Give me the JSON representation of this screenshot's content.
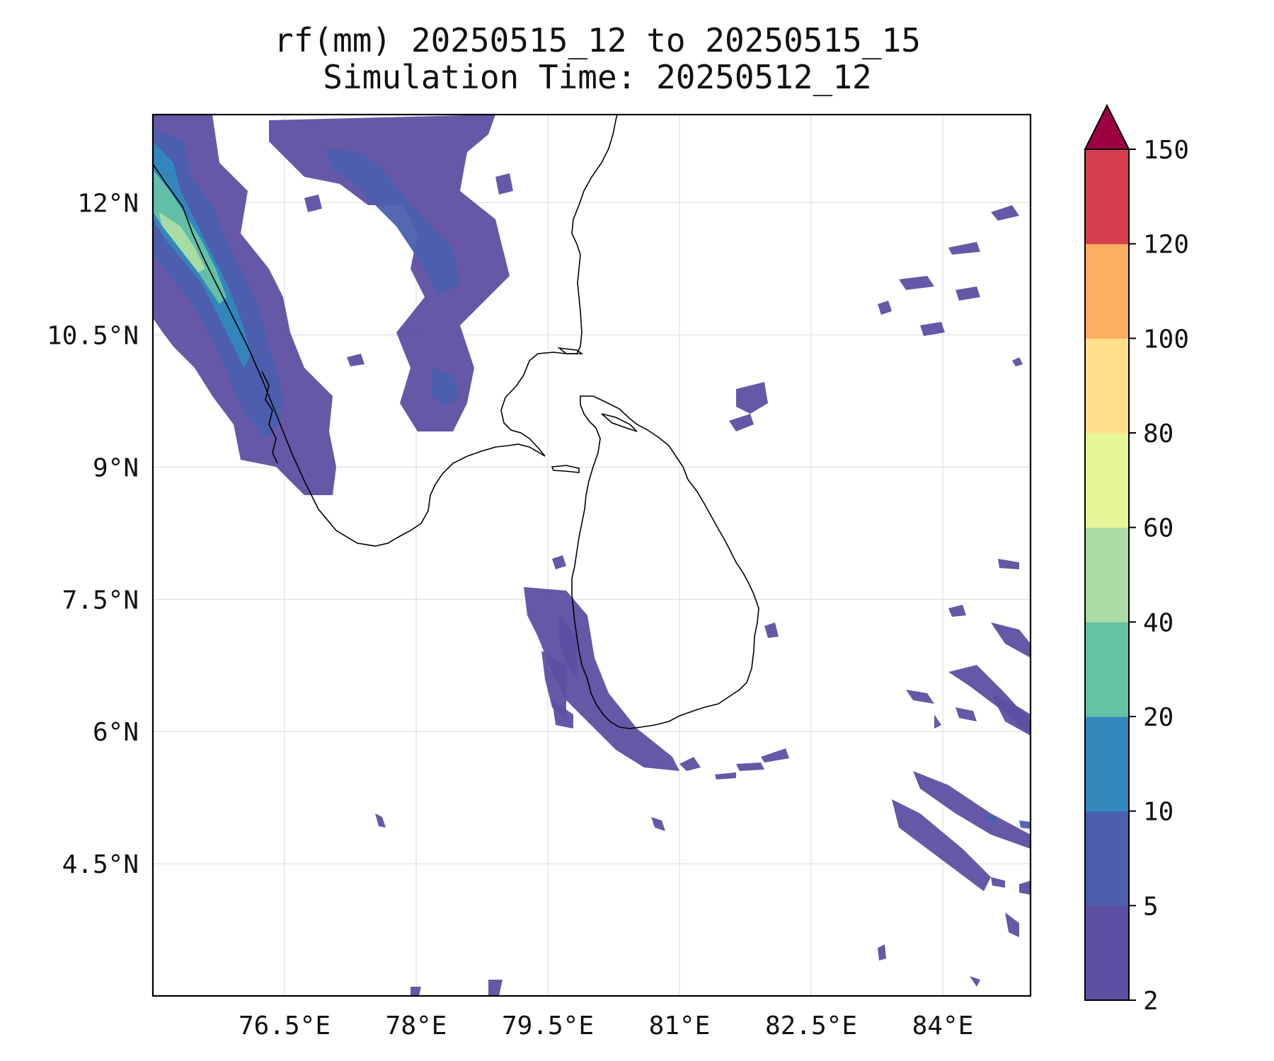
{
  "figure": {
    "title_line1": "rf(mm) 20250515_12 to 20250515_15",
    "title_line2": "Simulation Time: 20250512_12"
  },
  "map": {
    "lon_range": [
      75.0,
      85.0
    ],
    "lat_range": [
      3.0,
      13.0
    ],
    "x_ticks": [
      76.5,
      78,
      79.5,
      81,
      82.5,
      84
    ],
    "y_ticks": [
      12,
      10.5,
      9,
      7.5,
      6,
      4.5
    ],
    "x_tick_labels": [
      "76.5°E",
      "78°E",
      "79.5°E",
      "81°E",
      "82.5°E",
      "84°E"
    ],
    "y_tick_labels": [
      "12°N",
      "10.5°N",
      "9°N",
      "7.5°N",
      "6°N",
      "4.5°N"
    ],
    "gridlines": true,
    "coastline_color": "#000000"
  },
  "colorbar": {
    "orientation": "vertical",
    "levels": [
      2,
      5,
      10,
      20,
      40,
      60,
      80,
      100,
      120,
      150
    ],
    "tick_labels": [
      "2",
      "5",
      "10",
      "20",
      "40",
      "60",
      "80",
      "100",
      "120",
      "150"
    ],
    "colors": [
      "#5e4fa2",
      "#4b5fad",
      "#3288bd",
      "#66c2a5",
      "#abdda4",
      "#e6f598",
      "#fee08b",
      "#fdae61",
      "#d53e4f"
    ],
    "extend_color": "#9e0142",
    "extend": "max"
  }
}
